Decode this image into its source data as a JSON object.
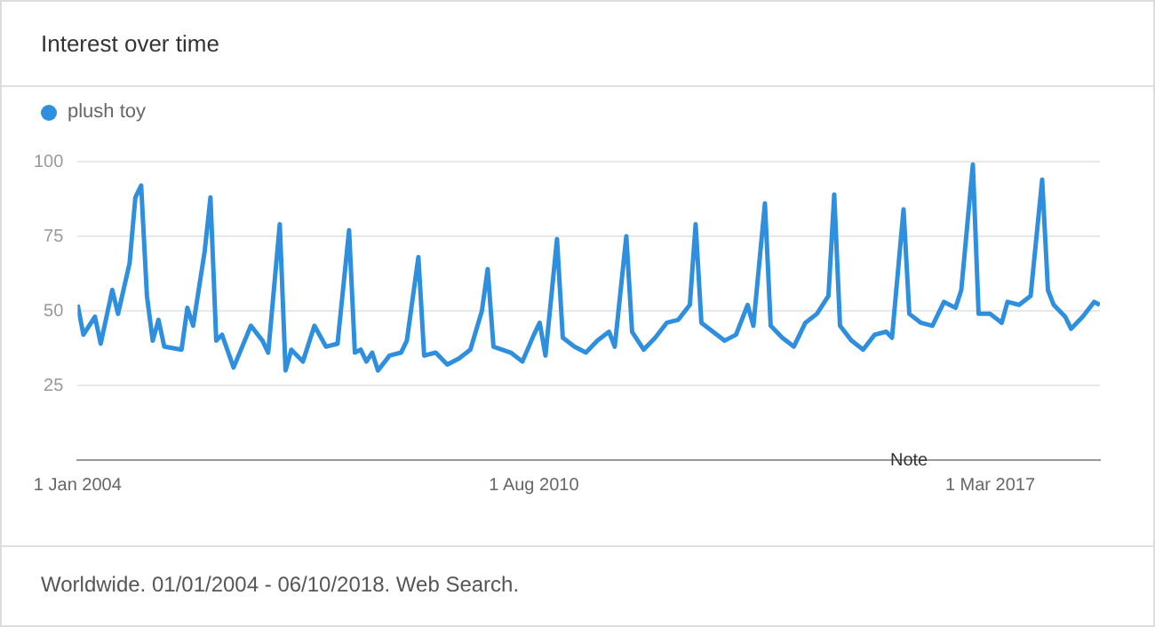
{
  "chart_data": {
    "type": "line",
    "title": "Interest over time",
    "x": [
      "2004-01",
      "2004-02",
      "2004-04",
      "2004-05",
      "2004-07",
      "2004-08",
      "2004-10",
      "2004-11",
      "2004-12",
      "2005-01",
      "2005-02",
      "2005-03",
      "2005-04",
      "2005-07",
      "2005-08",
      "2005-09",
      "2005-11",
      "2005-12",
      "2006-01",
      "2006-02",
      "2006-04",
      "2006-07",
      "2006-09",
      "2006-10",
      "2006-12",
      "2007-01",
      "2007-02",
      "2007-04",
      "2007-06",
      "2007-08",
      "2007-10",
      "2007-12",
      "2008-01",
      "2008-02",
      "2008-03",
      "2008-04",
      "2008-05",
      "2008-07",
      "2008-09",
      "2008-10",
      "2008-12",
      "2009-01",
      "2009-03",
      "2009-05",
      "2009-07",
      "2009-09",
      "2009-11",
      "2009-12",
      "2010-01",
      "2010-04",
      "2010-06",
      "2010-08",
      "2010-09",
      "2010-10",
      "2010-12",
      "2011-01",
      "2011-03",
      "2011-05",
      "2011-07",
      "2011-09",
      "2011-10",
      "2011-12",
      "2012-01",
      "2012-03",
      "2012-05",
      "2012-07",
      "2012-09",
      "2012-11",
      "2012-12",
      "2013-01",
      "2013-03",
      "2013-05",
      "2013-07",
      "2013-09",
      "2013-10",
      "2013-12",
      "2014-01",
      "2014-03",
      "2014-05",
      "2014-07",
      "2014-09",
      "2014-11",
      "2014-12",
      "2015-01",
      "2015-03",
      "2015-05",
      "2015-07",
      "2015-09",
      "2015-10",
      "2015-12",
      "2016-01",
      "2016-03",
      "2016-05",
      "2016-07",
      "2016-09",
      "2016-10",
      "2016-12",
      "2017-01",
      "2017-03",
      "2017-05",
      "2017-06",
      "2017-08",
      "2017-10",
      "2017-12",
      "2018-01",
      "2018-02",
      "2018-04",
      "2018-05",
      "2018-07",
      "2018-09",
      "2018-10"
    ],
    "series": [
      {
        "name": "plush toy",
        "color": "#2d8fdd",
        "values": [
          52,
          42,
          48,
          39,
          57,
          49,
          66,
          88,
          92,
          55,
          40,
          47,
          38,
          37,
          51,
          45,
          70,
          88,
          40,
          42,
          31,
          45,
          40,
          36,
          79,
          30,
          37,
          33,
          45,
          38,
          39,
          77,
          36,
          37,
          33,
          36,
          30,
          35,
          36,
          40,
          68,
          35,
          36,
          32,
          34,
          37,
          50,
          64,
          38,
          36,
          33,
          42,
          46,
          35,
          74,
          41,
          38,
          36,
          40,
          43,
          38,
          75,
          43,
          37,
          41,
          46,
          47,
          52,
          79,
          46,
          43,
          40,
          42,
          52,
          45,
          86,
          45,
          41,
          38,
          46,
          49,
          55,
          89,
          45,
          40,
          37,
          42,
          43,
          41,
          84,
          49,
          46,
          45,
          53,
          51,
          57,
          99,
          49,
          49,
          46,
          53,
          52,
          55,
          94,
          57,
          52,
          48,
          44,
          48,
          53,
          52
        ]
      }
    ],
    "xlim": [
      "2004-01",
      "2018-10"
    ],
    "xticks": [
      {
        "value": "2004-01-01",
        "label": "1 Jan 2004"
      },
      {
        "value": "2010-08-01",
        "label": "1 Aug 2010"
      },
      {
        "value": "2017-03-01",
        "label": "1 Mar 2017"
      }
    ],
    "ylim": [
      0,
      100
    ],
    "yticks": [
      25,
      50,
      75,
      100
    ],
    "grid": "y",
    "legend": "top left",
    "marker": "none",
    "line_style": "solid",
    "annotations": [
      "Note",
      "Worldwide. 01/01/2004 - 06/10/2018. Web Search."
    ]
  }
}
